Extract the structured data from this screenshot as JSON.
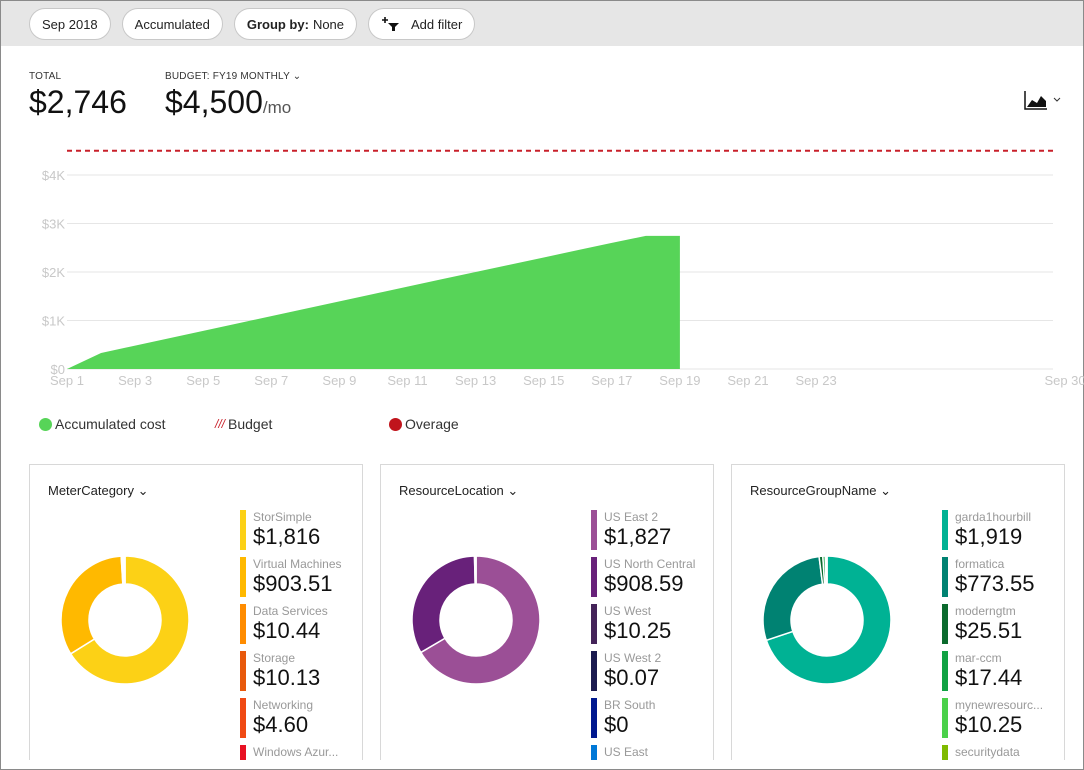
{
  "toolbar": {
    "period": "Sep 2018",
    "view": "Accumulated",
    "group_label": "Group by:",
    "group_value": "None",
    "add_filter": "Add filter"
  },
  "kpis": {
    "total_label": "TOTAL",
    "total_value": "$2,746",
    "budget_label": "BUDGET: FY19 MONTHLY",
    "budget_value": "$4,500",
    "budget_unit": "/mo"
  },
  "chart_data": {
    "type": "area",
    "x": [
      "Sep 1",
      "Sep 2",
      "Sep 3",
      "Sep 4",
      "Sep 5",
      "Sep 6",
      "Sep 7",
      "Sep 8",
      "Sep 9",
      "Sep 10",
      "Sep 11",
      "Sep 12",
      "Sep 13",
      "Sep 14",
      "Sep 15",
      "Sep 16",
      "Sep 17",
      "Sep 18",
      "Sep 19"
    ],
    "series": [
      {
        "name": "Accumulated cost",
        "values": [
          0,
          330,
          482,
          634,
          786,
          938,
          1090,
          1242,
          1394,
          1546,
          1698,
          1850,
          2000,
          2150,
          2300,
          2450,
          2600,
          2746,
          2746
        ],
        "color": "#57d458"
      }
    ],
    "budget": 4500,
    "budget_color": "#c8202a",
    "ylim": [
      0,
      4500
    ],
    "yticks": [
      "$0",
      "$1K",
      "$2K",
      "$3K",
      "$4K"
    ],
    "xticks": [
      "Sep 1",
      "Sep 3",
      "Sep 5",
      "Sep 7",
      "Sep 9",
      "Sep 11",
      "Sep 13",
      "Sep 15",
      "Sep 17",
      "Sep 19",
      "Sep 21",
      "Sep 23",
      "Sep 30"
    ],
    "grid": true,
    "legend": "bottom-left"
  },
  "legend": [
    {
      "label": "Accumulated cost",
      "color": "#57d458"
    },
    {
      "label": "Budget",
      "color": "#c8202a"
    },
    {
      "label": "Overage",
      "color": "#c0141c"
    }
  ],
  "cards": [
    {
      "title": "MeterCategory",
      "items": [
        {
          "name": "StorSimple",
          "value": "$1,816",
          "num": 1816,
          "color": "#fcd116"
        },
        {
          "name": "Virtual Machines",
          "value": "$903.51",
          "num": 903.51,
          "color": "#ffb900"
        },
        {
          "name": "Data Services",
          "value": "$10.44",
          "num": 10.44,
          "color": "#ff8c00"
        },
        {
          "name": "Storage",
          "value": "$10.13",
          "num": 10.13,
          "color": "#e8590c"
        },
        {
          "name": "Networking",
          "value": "$4.60",
          "num": 4.6,
          "color": "#f04a14"
        },
        {
          "name": "Windows Azur...",
          "value": "",
          "num": 1,
          "color": "#e81123"
        }
      ]
    },
    {
      "title": "ResourceLocation",
      "items": [
        {
          "name": "US East 2",
          "value": "$1,827",
          "num": 1827,
          "color": "#9b4f96"
        },
        {
          "name": "US North Central",
          "value": "$908.59",
          "num": 908.59,
          "color": "#68217a"
        },
        {
          "name": "US West",
          "value": "$10.25",
          "num": 10.25,
          "color": "#442359"
        },
        {
          "name": "US West 2",
          "value": "$0.07",
          "num": 0.07,
          "color": "#1b1b4f"
        },
        {
          "name": "BR South",
          "value": "$0",
          "num": 0,
          "color": "#00188f"
        },
        {
          "name": "US East",
          "value": "",
          "num": 0,
          "color": "#0078d7"
        }
      ]
    },
    {
      "title": "ResourceGroupName",
      "items": [
        {
          "name": "garda1hourbill",
          "value": "$1,919",
          "num": 1919,
          "color": "#00b294"
        },
        {
          "name": "formatica",
          "value": "$773.55",
          "num": 773.55,
          "color": "#008272"
        },
        {
          "name": "moderngtm",
          "value": "$25.51",
          "num": 25.51,
          "color": "#0b6a2d"
        },
        {
          "name": "mar-ccm",
          "value": "$17.44",
          "num": 17.44,
          "color": "#10a243"
        },
        {
          "name": "mynewresourc...",
          "value": "$10.25",
          "num": 10.25,
          "color": "#4ad14a"
        },
        {
          "name": "securitydata",
          "value": "",
          "num": 1,
          "color": "#7fba00"
        }
      ]
    }
  ]
}
